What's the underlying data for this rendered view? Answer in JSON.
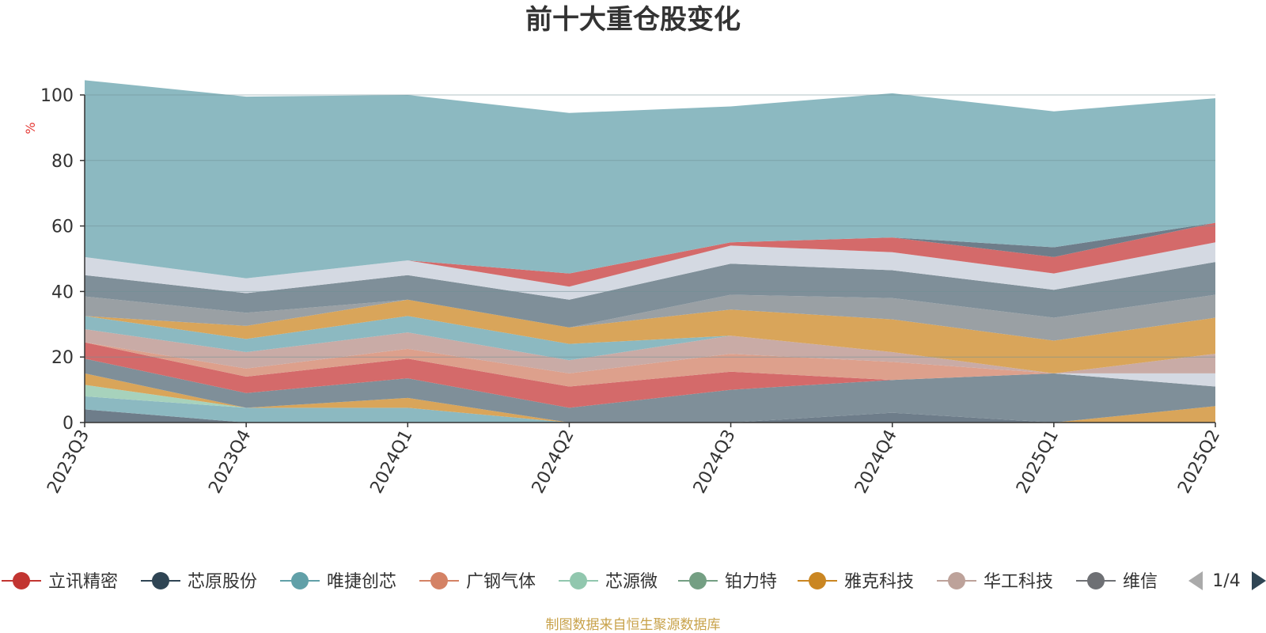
{
  "chart_data": {
    "type": "area",
    "title": "前十大重仓股变化",
    "ylabel": "%",
    "xlabel": "",
    "categories": [
      "2023Q3",
      "2023Q4",
      "2024Q1",
      "2024Q2",
      "2024Q3",
      "2024Q4",
      "2025Q1",
      "2025Q2"
    ],
    "ylim": [
      0,
      100
    ],
    "yticks": [
      "0",
      "20",
      "40",
      "60",
      "80",
      "100"
    ],
    "stacked": true,
    "grid": true,
    "legend_position": "bottom",
    "legend_page": "1/4",
    "series_colors": [
      "#6e7d8a",
      "#8cb9c1",
      "#a7d2bc",
      "#d9a55a",
      "#7f8f99",
      "#d46a6a",
      "#dda08c",
      "#c9aba6",
      "#9aa0a4",
      "#d4d9e2",
      "#d46a6a",
      "#6e7d8a"
    ],
    "series": [
      {
        "values": [
          4,
          0,
          0,
          0,
          0,
          3,
          0,
          0
        ]
      },
      {
        "values": [
          4,
          4.5,
          4.5,
          0,
          0,
          0,
          0,
          0
        ]
      },
      {
        "values": [
          3.5,
          0,
          0,
          0,
          0,
          0,
          0,
          0
        ]
      },
      {
        "values": [
          3.5,
          0,
          3,
          0,
          0,
          0,
          0,
          5
        ]
      },
      {
        "values": [
          4.5,
          4.5,
          6,
          4.5,
          10,
          10,
          15,
          6
        ]
      },
      {
        "values": [
          5,
          5,
          6,
          6.5,
          5.5,
          0,
          0,
          0
        ]
      },
      {
        "values": [
          0,
          2.5,
          3,
          4,
          5.5,
          5.5,
          0,
          0
        ]
      },
      {
        "values": [
          0,
          0,
          0,
          0,
          0,
          0,
          0,
          4
        ]
      },
      {
        "values": [
          4,
          5,
          5,
          4,
          5.5,
          3,
          0,
          6
        ]
      },
      {
        "values": [
          4,
          4,
          5,
          5,
          0,
          0,
          0,
          0
        ]
      },
      {
        "values": [
          0,
          4,
          5,
          5,
          8,
          10,
          10,
          11
        ]
      },
      {
        "values": [
          6,
          4,
          0,
          0,
          4.5,
          6.5,
          7,
          7
        ]
      },
      {
        "values": [
          6.5,
          6,
          7.5,
          8.5,
          9.5,
          8.5,
          8.5,
          10
        ]
      },
      {
        "values": [
          5.5,
          4.5,
          4.5,
          4,
          5.5,
          5.5,
          5,
          6
        ]
      },
      {
        "values": [
          0,
          0,
          0,
          4,
          1,
          4.5,
          5,
          6
        ]
      },
      {
        "values": [
          0,
          0,
          0,
          0,
          0,
          0,
          3,
          0
        ]
      },
      {
        "values": [
          54,
          55.5,
          50.5,
          49,
          41.5,
          44,
          41.5,
          38
        ]
      }
    ],
    "series_fill_colors": [
      "#6e7d8a",
      "#8cb9c1",
      "#a7d2bc",
      "#d9a55a",
      "#7f8f99",
      "#d46a6a",
      "#dda08c",
      "#d4d9e2",
      "#c9aba6",
      "#8cb9c1",
      "#d9a55a",
      "#9aa0a4",
      "#7f8f99",
      "#d4d9e2",
      "#d46a6a",
      "#6e7d8a",
      "#8cb9c1"
    ]
  },
  "legend": {
    "items": [
      {
        "label": "立讯精密",
        "color": "#c23531"
      },
      {
        "label": "芯原股份",
        "color": "#2f4554"
      },
      {
        "label": "唯捷创芯",
        "color": "#61a0a8"
      },
      {
        "label": "广钢气体",
        "color": "#d48265"
      },
      {
        "label": "芯源微",
        "color": "#91c7ae"
      },
      {
        "label": "铂力特",
        "color": "#749f83"
      },
      {
        "label": "雅克科技",
        "color": "#ca8622"
      },
      {
        "label": "华工科技",
        "color": "#bda29a"
      },
      {
        "label": "维信",
        "color": "#6e7074"
      }
    ],
    "page": "1/4"
  },
  "footer": {
    "source": "制图数据来自恒生聚源数据库",
    "color": "#c8a24a"
  }
}
